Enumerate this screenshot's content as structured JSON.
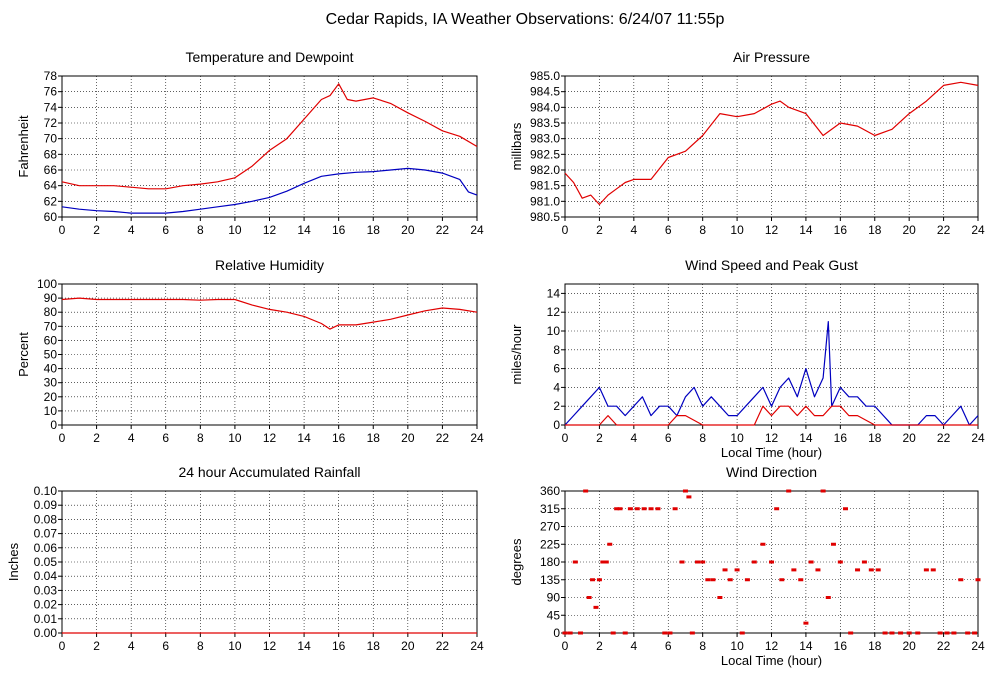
{
  "main_title": "Cedar Rapids, IA Weather Observations: 6/24/07 11:55p",
  "colors": {
    "temperature": "#e00000",
    "dewpoint": "#0000c0",
    "wind_speed": "#0000c0",
    "gust": "#e00000",
    "red": "#e00000"
  },
  "chart_data": [
    {
      "id": "temp",
      "type": "line",
      "title": "Temperature and Dewpoint",
      "ylabel": "Fahrenheit",
      "xlabel": "",
      "xlim": [
        0,
        24
      ],
      "ylim": [
        60,
        78
      ],
      "xticks": [
        "0",
        "2",
        "4",
        "6",
        "8",
        "10",
        "12",
        "14",
        "16",
        "18",
        "20",
        "22",
        "24"
      ],
      "yticks": [
        "60",
        "62",
        "64",
        "66",
        "68",
        "70",
        "72",
        "74",
        "76",
        "78"
      ],
      "grid": true,
      "series": [
        {
          "role": "temperature",
          "color": "#e00000",
          "x": [
            0,
            1,
            2,
            3,
            4,
            5,
            6,
            7,
            8,
            9,
            10,
            11,
            12,
            13,
            14,
            15,
            15.5,
            16,
            16.5,
            17,
            18,
            19,
            20,
            21,
            22,
            23,
            24
          ],
          "y": [
            64.5,
            64,
            64,
            64,
            63.8,
            63.6,
            63.6,
            64,
            64.2,
            64.5,
            65,
            66.5,
            68.5,
            70,
            72.5,
            75,
            75.5,
            77,
            75,
            74.8,
            75.2,
            74.5,
            73.3,
            72.2,
            71,
            70.3,
            69
          ]
        },
        {
          "role": "dewpoint",
          "color": "#0000c0",
          "x": [
            0,
            1,
            2,
            3,
            4,
            5,
            6,
            7,
            8,
            9,
            10,
            11,
            12,
            13,
            14,
            15,
            16,
            17,
            18,
            19,
            20,
            21,
            22,
            23,
            23.5,
            24
          ],
          "y": [
            61.3,
            61,
            60.8,
            60.7,
            60.5,
            60.5,
            60.5,
            60.7,
            61,
            61.3,
            61.6,
            62,
            62.5,
            63.3,
            64.3,
            65.2,
            65.5,
            65.7,
            65.8,
            66,
            66.2,
            66,
            65.6,
            64.8,
            63.2,
            62.8
          ]
        }
      ]
    },
    {
      "id": "pressure",
      "type": "line",
      "title": "Air Pressure",
      "ylabel": "millibars",
      "xlabel": "",
      "xlim": [
        0,
        24
      ],
      "ylim": [
        980.5,
        985.0
      ],
      "xticks": [
        "0",
        "2",
        "4",
        "6",
        "8",
        "10",
        "12",
        "14",
        "16",
        "18",
        "20",
        "22",
        "24"
      ],
      "yticks": [
        "980.5",
        "981.0",
        "981.5",
        "982.0",
        "982.5",
        "983.0",
        "983.5",
        "984.0",
        "984.5",
        "985.0"
      ],
      "grid": true,
      "series": [
        {
          "role": "pressure",
          "color": "#e00000",
          "x": [
            0,
            0.5,
            1,
            1.5,
            2,
            2.5,
            3,
            3.5,
            4,
            5,
            6,
            7,
            8,
            9,
            10,
            11,
            12,
            12.5,
            13,
            14,
            15,
            16,
            17,
            18,
            19,
            20,
            21,
            22,
            23,
            24
          ],
          "y": [
            981.9,
            981.6,
            981.1,
            981.2,
            980.9,
            981.2,
            981.4,
            981.6,
            981.7,
            981.7,
            982.4,
            982.6,
            983.1,
            983.8,
            983.7,
            983.8,
            984.1,
            984.2,
            984.0,
            983.8,
            983.1,
            983.5,
            983.4,
            983.1,
            983.3,
            983.8,
            984.2,
            984.7,
            984.8,
            984.7
          ]
        }
      ]
    },
    {
      "id": "humidity",
      "type": "line",
      "title": "Relative Humidity",
      "ylabel": "Percent",
      "xlabel": "",
      "xlim": [
        0,
        24
      ],
      "ylim": [
        0,
        100
      ],
      "xticks": [
        "0",
        "2",
        "4",
        "6",
        "8",
        "10",
        "12",
        "14",
        "16",
        "18",
        "20",
        "22",
        "24"
      ],
      "yticks": [
        "0",
        "10",
        "20",
        "30",
        "40",
        "50",
        "60",
        "70",
        "80",
        "90",
        "100"
      ],
      "grid": true,
      "series": [
        {
          "role": "humidity",
          "color": "#e00000",
          "x": [
            0,
            1,
            2,
            3,
            4,
            5,
            6,
            7,
            8,
            9,
            10,
            11,
            12,
            13,
            14,
            15,
            15.5,
            16,
            17,
            18,
            19,
            20,
            21,
            22,
            23,
            24
          ],
          "y": [
            89,
            90,
            89,
            89,
            89,
            89,
            89,
            89,
            88.5,
            89,
            89,
            85,
            82,
            80,
            77,
            72,
            68,
            71,
            71,
            73,
            75,
            78,
            81,
            83,
            82,
            80
          ]
        }
      ]
    },
    {
      "id": "wind",
      "type": "line",
      "title": "Wind Speed and Peak Gust",
      "ylabel": "miles/hour",
      "xlabel": "Local Time (hour)",
      "xlim": [
        0,
        24
      ],
      "ylim": [
        0,
        15
      ],
      "xticks": [
        "0",
        "2",
        "4",
        "6",
        "8",
        "10",
        "12",
        "14",
        "16",
        "18",
        "20",
        "22",
        "24"
      ],
      "yticks": [
        "0",
        "2",
        "4",
        "6",
        "8",
        "10",
        "12",
        "14"
      ],
      "grid": true,
      "series": [
        {
          "role": "wind_speed",
          "color": "#0000c0",
          "x": [
            0,
            0.5,
            1,
            1.5,
            2,
            2.5,
            3,
            3.5,
            4,
            4.5,
            5,
            5.5,
            6,
            6.5,
            7,
            7.5,
            8,
            8.5,
            9,
            9.5,
            10,
            10.5,
            11,
            11.5,
            12,
            12.5,
            13,
            13.5,
            14,
            14.5,
            15,
            15.3,
            15.5,
            16,
            16.5,
            17,
            17.5,
            18,
            18.5,
            19,
            19.5,
            20,
            20.5,
            21,
            21.5,
            22,
            22.5,
            23,
            23.5,
            24
          ],
          "y": [
            0,
            1,
            2,
            3,
            4,
            2,
            2,
            1,
            2,
            3,
            1,
            2,
            2,
            1,
            3,
            4,
            2,
            3,
            2,
            1,
            1,
            2,
            3,
            4,
            2,
            4,
            5,
            3,
            6,
            3,
            5,
            11,
            2,
            4,
            3,
            3,
            2,
            2,
            1,
            0,
            0,
            0,
            0,
            1,
            1,
            0,
            1,
            2,
            0,
            1
          ]
        },
        {
          "role": "gust",
          "color": "#e00000",
          "x": [
            0,
            1,
            2,
            2.5,
            3,
            5,
            6,
            6.5,
            7,
            8,
            9,
            10,
            11,
            11.5,
            12,
            12.5,
            13,
            13.5,
            14,
            14.5,
            15,
            15.5,
            16,
            16.5,
            17,
            18,
            19,
            24
          ],
          "y": [
            0,
            0,
            0,
            1,
            0,
            0,
            0,
            1,
            1,
            0,
            0,
            0,
            0,
            2,
            1,
            2,
            2,
            1,
            2,
            1,
            1,
            2,
            2,
            1,
            1,
            0,
            0,
            0
          ]
        }
      ]
    },
    {
      "id": "rain",
      "type": "line",
      "title": "24 hour Accumulated Rainfall",
      "ylabel": "Inches",
      "xlabel": "",
      "xlim": [
        0,
        24
      ],
      "ylim": [
        0,
        0.1
      ],
      "xticks": [
        "0",
        "2",
        "4",
        "6",
        "8",
        "10",
        "12",
        "14",
        "16",
        "18",
        "20",
        "22",
        "24"
      ],
      "yticks": [
        "0.00",
        "0.01",
        "0.02",
        "0.03",
        "0.04",
        "0.05",
        "0.06",
        "0.07",
        "0.08",
        "0.09",
        "0.10"
      ],
      "grid": true,
      "series": [
        {
          "role": "rainfall",
          "color": "#e00000",
          "x": [
            0,
            24
          ],
          "y": [
            0,
            0
          ]
        }
      ]
    },
    {
      "id": "direction",
      "type": "scatter",
      "title": "Wind Direction",
      "ylabel": "degrees",
      "xlabel": "Local Time (hour)",
      "xlim": [
        0,
        24
      ],
      "ylim": [
        0,
        360
      ],
      "xticks": [
        "0",
        "2",
        "4",
        "6",
        "8",
        "10",
        "12",
        "14",
        "16",
        "18",
        "20",
        "22",
        "24"
      ],
      "yticks": [
        "0",
        "45",
        "90",
        "135",
        "180",
        "225",
        "270",
        "315",
        "360"
      ],
      "grid": true,
      "series": [
        {
          "role": "direction",
          "color": "#e00000",
          "x": [
            0,
            0.3,
            0.6,
            0.9,
            1.2,
            1.4,
            1.6,
            1.8,
            2,
            2.2,
            2.4,
            2.6,
            2.8,
            3,
            3.2,
            3.5,
            3.8,
            4.2,
            4.6,
            5,
            5.4,
            5.8,
            6.1,
            6.4,
            6.8,
            7,
            7.2,
            7.4,
            7.7,
            8,
            8.3,
            8.6,
            9,
            9.3,
            9.6,
            10,
            10.3,
            10.6,
            11,
            11.5,
            12,
            12.3,
            12.6,
            13,
            13.3,
            13.7,
            14,
            14.3,
            14.7,
            15,
            15.3,
            15.6,
            16,
            16.3,
            16.6,
            17,
            17.4,
            17.8,
            18.2,
            18.6,
            19,
            19.5,
            20,
            20.5,
            21,
            21.4,
            21.8,
            22.2,
            22.6,
            23,
            23.4,
            23.8,
            24
          ],
          "y": [
            0,
            0,
            180,
            0,
            360,
            90,
            135,
            65,
            135,
            180,
            180,
            225,
            0,
            315,
            315,
            0,
            315,
            315,
            315,
            315,
            315,
            0,
            0,
            315,
            180,
            360,
            345,
            0,
            180,
            180,
            135,
            135,
            90,
            160,
            135,
            160,
            0,
            135,
            180,
            225,
            180,
            315,
            135,
            360,
            160,
            135,
            25,
            180,
            160,
            360,
            90,
            225,
            180,
            315,
            0,
            160,
            180,
            160,
            160,
            0,
            0,
            0,
            0,
            0,
            160,
            160,
            0,
            0,
            0,
            135,
            0,
            0,
            135
          ]
        }
      ]
    }
  ]
}
